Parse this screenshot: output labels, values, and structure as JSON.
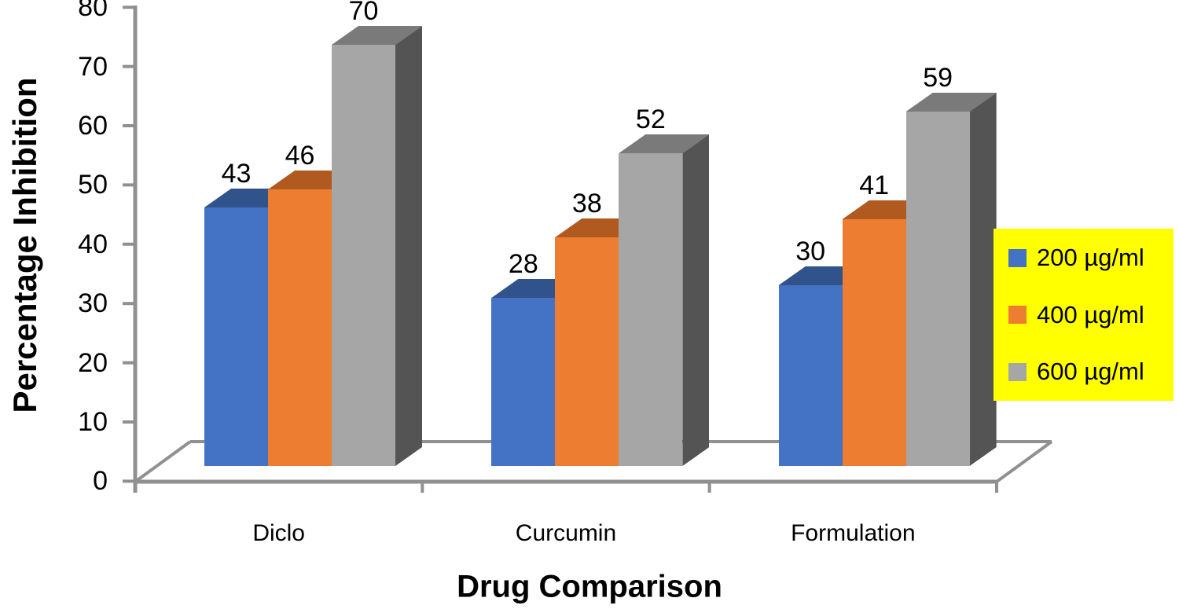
{
  "chart_data": {
    "type": "bar",
    "projection": "3d",
    "title": "",
    "xlabel": "Drug Comparison",
    "ylabel": "Percentage Inhibition",
    "categories": [
      "Diclo",
      "Curcumin",
      "Formulation"
    ],
    "series": [
      {
        "name": "200 µg/ml",
        "values": [
          43,
          28,
          30
        ],
        "color": "#4472C4",
        "top_color": "#31538C",
        "side_color": "#27436F"
      },
      {
        "name": "400 µg/ml",
        "values": [
          46,
          38,
          41
        ],
        "color": "#ED7D31",
        "top_color": "#B05A20",
        "side_color": "#9C4F1B"
      },
      {
        "name": "600 µg/ml",
        "values": [
          70,
          52,
          59
        ],
        "color": "#A6A6A6",
        "top_color": "#7A7A7A",
        "side_color": "#545454"
      }
    ],
    "ylim": [
      0,
      80
    ],
    "ytick_step": 10,
    "data_labels": true,
    "gridlines": false,
    "legend": {
      "position": "right",
      "background": "#FFFF00",
      "text_color": "#000000"
    },
    "axis_color": "#909090",
    "text_color": "#000000"
  }
}
